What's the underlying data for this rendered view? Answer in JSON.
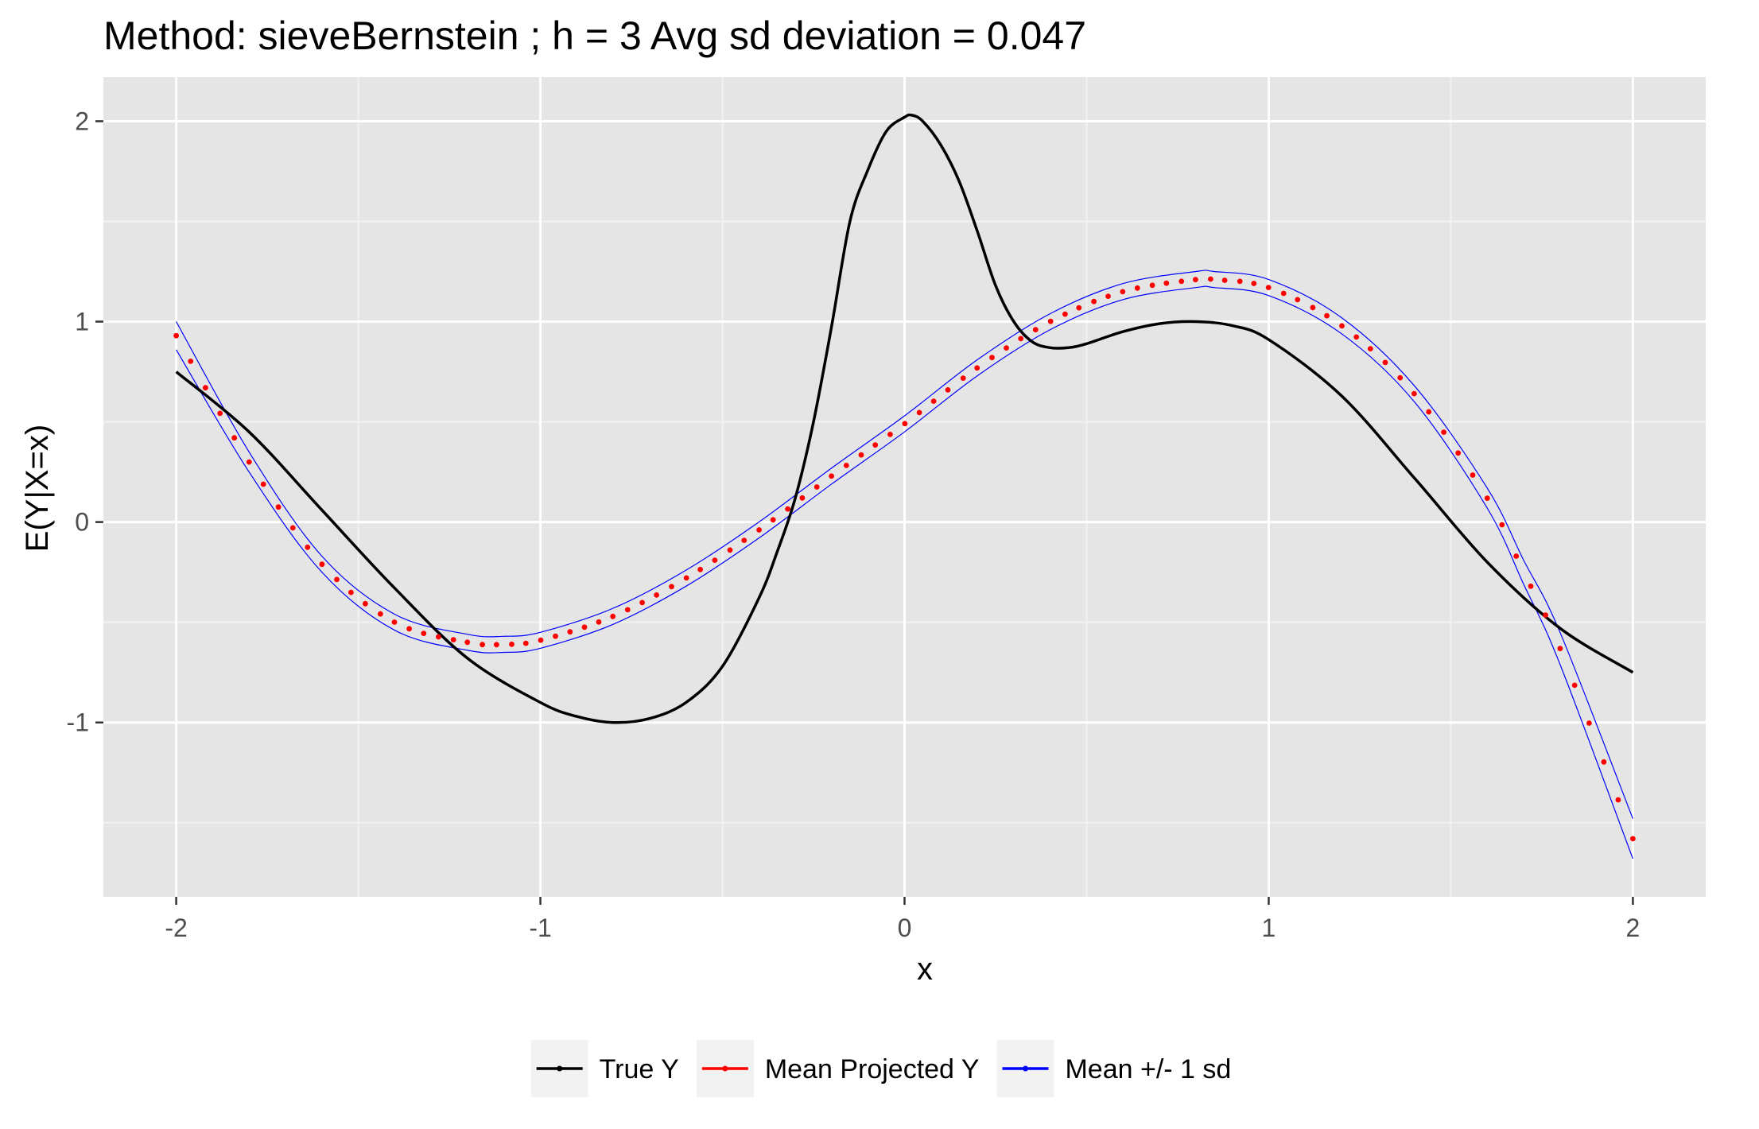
{
  "chart_data": {
    "type": "line",
    "title": "Method: sieveBernstein ; h = 3 Avg sd deviation = 0.047",
    "xlabel": "x",
    "ylabel": "E(Y|X=x)",
    "xlim": [
      -2.2,
      2.2
    ],
    "ylim": [
      -1.87,
      2.22
    ],
    "x_ticks": [
      -2,
      -1,
      0,
      1,
      2
    ],
    "x_tick_labels": [
      "-2",
      "-1",
      "0",
      "1",
      "2"
    ],
    "y_ticks": [
      -1,
      0,
      1,
      2
    ],
    "y_tick_labels": [
      "-1",
      "0",
      "1",
      "2"
    ],
    "grid": true,
    "legend_position": "bottom",
    "series": [
      {
        "name": "True Y",
        "color": "#000000",
        "style": "solid-line",
        "x": [
          -2.0,
          -1.8,
          -1.6,
          -1.4,
          -1.2,
          -1.0,
          -0.9,
          -0.8,
          -0.7,
          -0.6,
          -0.5,
          -0.4,
          -0.35,
          -0.3,
          -0.25,
          -0.2,
          -0.15,
          -0.1,
          -0.05,
          0.0,
          0.02,
          0.05,
          0.1,
          0.15,
          0.2,
          0.25,
          0.3,
          0.35,
          0.4,
          0.45,
          0.5,
          0.6,
          0.7,
          0.8,
          0.9,
          1.0,
          1.2,
          1.4,
          1.6,
          1.8,
          2.0
        ],
        "values": [
          0.75,
          0.45,
          0.06,
          -0.33,
          -0.68,
          -0.9,
          -0.97,
          -1.0,
          -0.98,
          -0.9,
          -0.72,
          -0.38,
          -0.15,
          0.12,
          0.5,
          0.98,
          1.5,
          1.76,
          1.95,
          2.02,
          2.03,
          2.0,
          1.88,
          1.7,
          1.45,
          1.18,
          1.0,
          0.9,
          0.87,
          0.87,
          0.89,
          0.95,
          0.99,
          1.0,
          0.98,
          0.91,
          0.63,
          0.22,
          -0.2,
          -0.53,
          -0.75
        ]
      },
      {
        "name": "Mean Projected Y",
        "color": "#ff0000",
        "style": "dots",
        "x": [
          -2.0,
          -1.8,
          -1.6,
          -1.4,
          -1.2,
          -1.1,
          -1.0,
          -0.8,
          -0.6,
          -0.4,
          -0.2,
          0.0,
          0.2,
          0.4,
          0.6,
          0.8,
          0.85,
          1.0,
          1.2,
          1.4,
          1.6,
          1.7,
          1.8,
          2.0
        ],
        "values": [
          0.93,
          0.3,
          -0.21,
          -0.5,
          -0.6,
          -0.61,
          -0.59,
          -0.47,
          -0.28,
          -0.04,
          0.23,
          0.49,
          0.77,
          1.0,
          1.15,
          1.21,
          1.21,
          1.17,
          0.98,
          0.64,
          0.12,
          -0.25,
          -0.63,
          -1.58
        ]
      },
      {
        "name": "Mean +/- 1 sd",
        "color": "#0000ff",
        "style": "thin-lines-upper-lower",
        "x": [
          -2.0,
          -1.8,
          -1.6,
          -1.4,
          -1.2,
          -1.1,
          -1.0,
          -0.8,
          -0.6,
          -0.4,
          -0.2,
          0.0,
          0.2,
          0.4,
          0.6,
          0.8,
          0.85,
          1.0,
          1.2,
          1.4,
          1.6,
          1.7,
          1.8,
          2.0
        ],
        "upper": [
          1.0,
          0.35,
          -0.17,
          -0.46,
          -0.56,
          -0.57,
          -0.55,
          -0.43,
          -0.24,
          0.0,
          0.27,
          0.53,
          0.81,
          1.04,
          1.19,
          1.25,
          1.25,
          1.21,
          1.02,
          0.68,
          0.17,
          -0.19,
          -0.55,
          -1.48
        ],
        "lower": [
          0.86,
          0.25,
          -0.25,
          -0.54,
          -0.64,
          -0.65,
          -0.63,
          -0.51,
          -0.32,
          -0.08,
          0.19,
          0.45,
          0.73,
          0.96,
          1.11,
          1.17,
          1.17,
          1.13,
          0.94,
          0.6,
          0.07,
          -0.31,
          -0.71,
          -1.68
        ]
      }
    ]
  }
}
